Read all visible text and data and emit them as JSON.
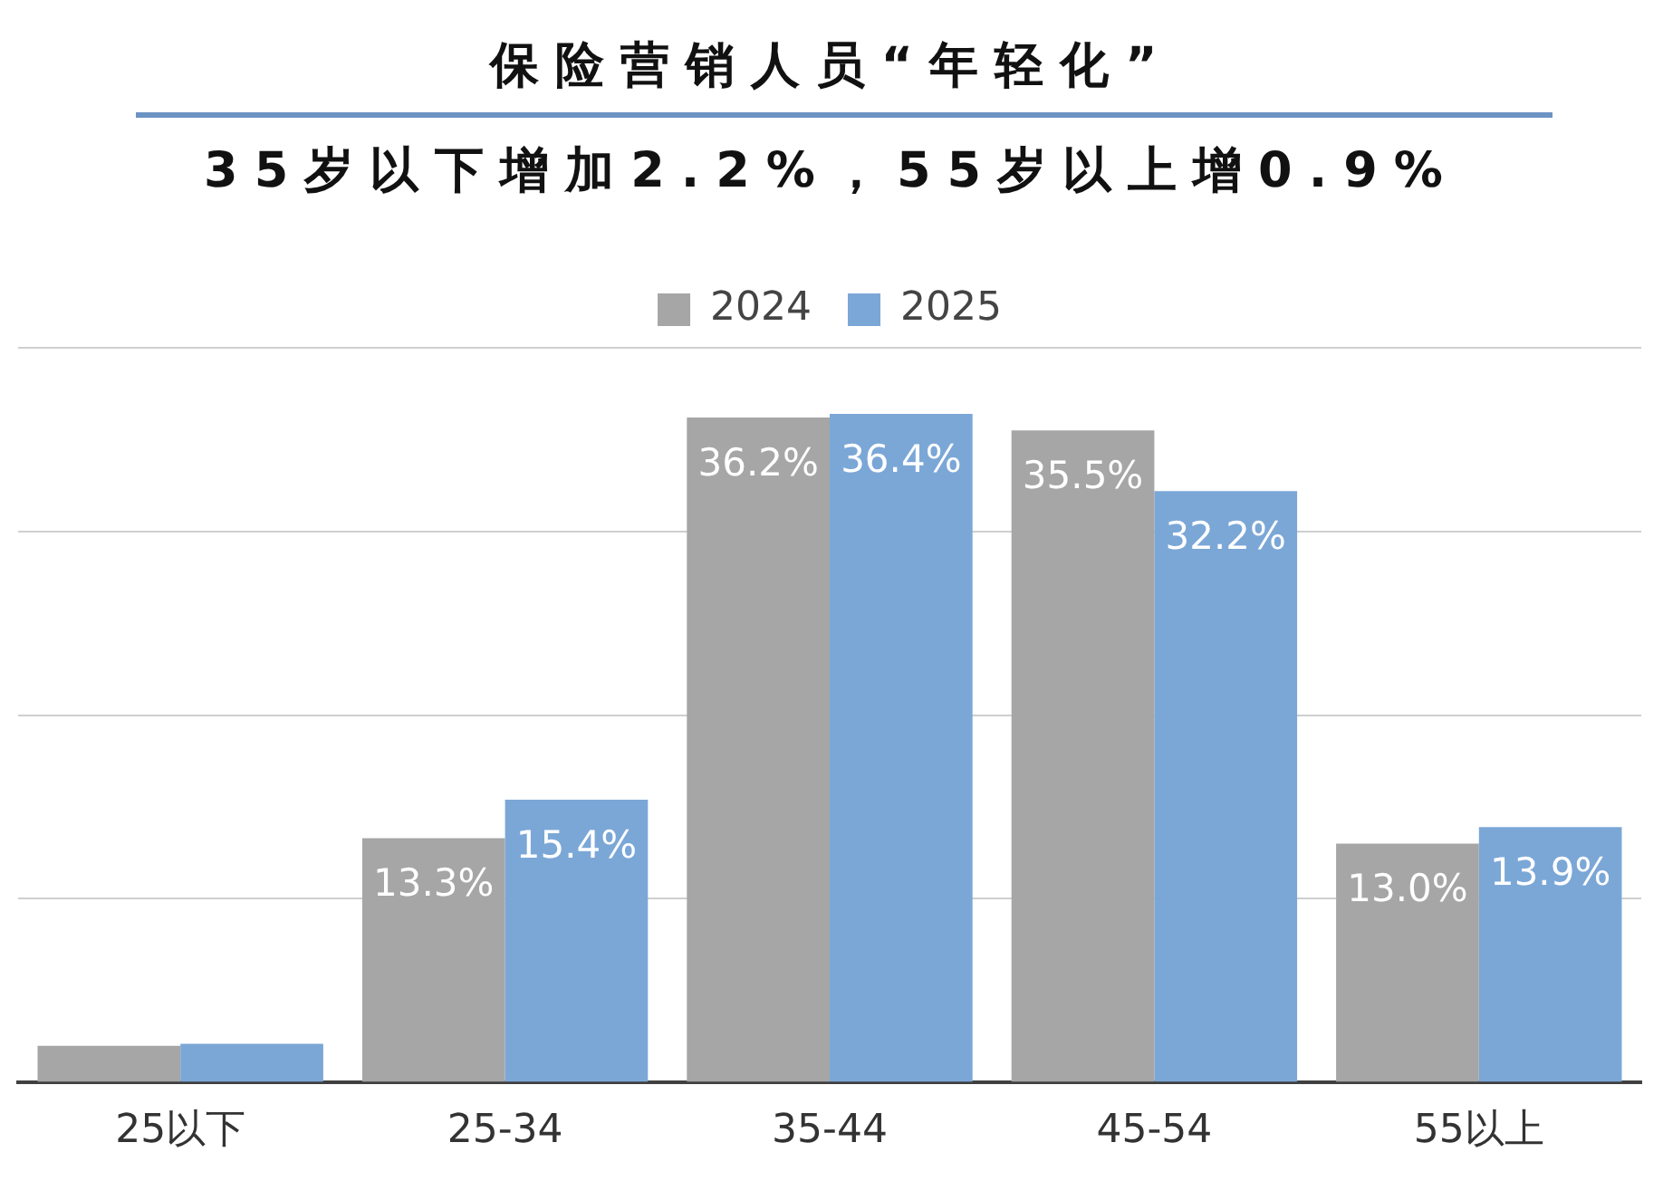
{
  "chart_data": {
    "type": "bar",
    "title": "保险营销人员“年轻化”",
    "subtitle": "35岁以下增加2.2%，55岁以上增0.9%",
    "categories": [
      "25以下",
      "25-34",
      "35-44",
      "45-54",
      "55以上"
    ],
    "series": [
      {
        "name": "2024",
        "color": "#a6a6a6",
        "values": [
          2.0,
          13.3,
          36.2,
          35.5,
          13.0
        ],
        "value_labels": [
          null,
          "13.3%",
          "36.2%",
          "35.5%",
          "13.0%"
        ]
      },
      {
        "name": "2025",
        "color": "#7ba7d7",
        "values": [
          2.1,
          15.4,
          36.4,
          32.2,
          13.9
        ],
        "value_labels": [
          null,
          "15.4%",
          "36.4%",
          "32.2%",
          "13.9%"
        ]
      }
    ],
    "ylim": [
      0,
      40
    ],
    "yticks": [
      {
        "value": 0,
        "label": null
      },
      {
        "value": 10,
        "label": null
      },
      {
        "value": 20,
        "label": null
      },
      {
        "value": 30,
        "label": null
      },
      {
        "value": 40,
        "label": null
      }
    ],
    "grid": "y",
    "legend": "top",
    "tick_labels": "x"
  }
}
